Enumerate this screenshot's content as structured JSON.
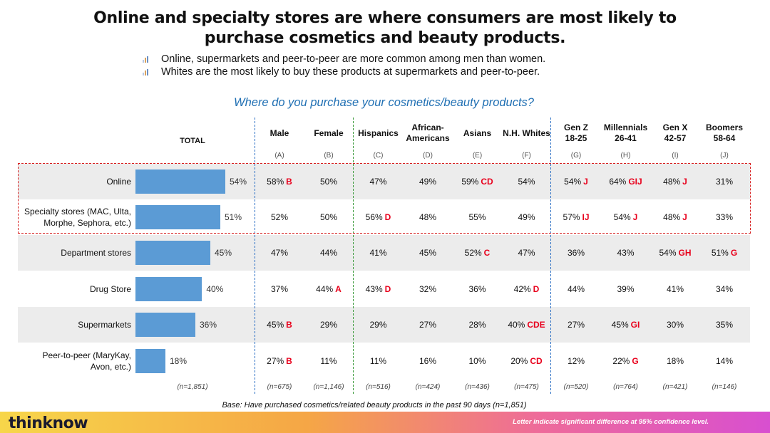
{
  "title_line1": "Online and specialty stores are where consumers are most likely to",
  "title_line2": "purchase cosmetics and beauty products.",
  "bullets": [
    "Online, supermarkets and peer-to-peer are more common among men than women.",
    "Whites are the most likely to buy these products at supermarkets and peer-to-peer."
  ],
  "question": "Where do you purchase your cosmetics/beauty products?",
  "total_header": "TOTAL",
  "columns": [
    {
      "line1": "Male",
      "line2": "",
      "letter": "(A)",
      "n": "(n=675)"
    },
    {
      "line1": "Female",
      "line2": "",
      "letter": "(B)",
      "n": "(n=1,146)"
    },
    {
      "line1": "Hispanics",
      "line2": "",
      "letter": "(C)",
      "n": "(n=516)"
    },
    {
      "line1": "African-",
      "line2": "Americans",
      "letter": "(D)",
      "n": "(n=424)"
    },
    {
      "line1": "Asians",
      "line2": "",
      "letter": "(E)",
      "n": "(n=436)"
    },
    {
      "line1": "N.H. Whites",
      "line2": "",
      "letter": "(F)",
      "n": "(n=475)"
    },
    {
      "line1": "Gen Z",
      "line2": "18-25",
      "letter": "(G)",
      "n": "(n=520)"
    },
    {
      "line1": "Millennials",
      "line2": "26-41",
      "letter": "(H)",
      "n": "(n=764)"
    },
    {
      "line1": "Gen X",
      "line2": "42-57",
      "letter": "(I)",
      "n": "(n=421)"
    },
    {
      "line1": "Boomers",
      "line2": "58-64",
      "letter": "(J)",
      "n": "(n=146)"
    }
  ],
  "total_n": "(n=1,851)",
  "rows": [
    {
      "line1": "Online",
      "line2": "",
      "total": "54%",
      "cells": [
        [
          "58%",
          "B"
        ],
        [
          "50%",
          ""
        ],
        [
          "47%",
          ""
        ],
        [
          "49%",
          ""
        ],
        [
          "59%",
          "CD"
        ],
        [
          "54%",
          ""
        ],
        [
          "54%",
          "J"
        ],
        [
          "64%",
          "GIJ"
        ],
        [
          "48%",
          "J"
        ],
        [
          "31%",
          ""
        ]
      ]
    },
    {
      "line1": "Specialty stores (MAC, Ulta,",
      "line2": "Morphe, Sephora, etc.)",
      "total": "51%",
      "cells": [
        [
          "52%",
          ""
        ],
        [
          "50%",
          ""
        ],
        [
          "56%",
          "D"
        ],
        [
          "48%",
          ""
        ],
        [
          "55%",
          ""
        ],
        [
          "49%",
          ""
        ],
        [
          "57%",
          "IJ"
        ],
        [
          "54%",
          "J"
        ],
        [
          "48%",
          "J"
        ],
        [
          "33%",
          ""
        ]
      ]
    },
    {
      "line1": "Department stores",
      "line2": "",
      "total": "45%",
      "cells": [
        [
          "47%",
          ""
        ],
        [
          "44%",
          ""
        ],
        [
          "41%",
          ""
        ],
        [
          "45%",
          ""
        ],
        [
          "52%",
          "C"
        ],
        [
          "47%",
          ""
        ],
        [
          "36%",
          ""
        ],
        [
          "43%",
          ""
        ],
        [
          "54%",
          "GH"
        ],
        [
          "51%",
          "G"
        ]
      ]
    },
    {
      "line1": "Drug Store",
      "line2": "",
      "total": "40%",
      "cells": [
        [
          "37%",
          ""
        ],
        [
          "44%",
          "A"
        ],
        [
          "43%",
          "D"
        ],
        [
          "32%",
          ""
        ],
        [
          "36%",
          ""
        ],
        [
          "42%",
          "D"
        ],
        [
          "44%",
          ""
        ],
        [
          "39%",
          ""
        ],
        [
          "41%",
          ""
        ],
        [
          "34%",
          ""
        ]
      ]
    },
    {
      "line1": "Supermarkets",
      "line2": "",
      "total": "36%",
      "cells": [
        [
          "45%",
          "B"
        ],
        [
          "29%",
          ""
        ],
        [
          "29%",
          ""
        ],
        [
          "27%",
          ""
        ],
        [
          "28%",
          ""
        ],
        [
          "40%",
          "CDE"
        ],
        [
          "27%",
          ""
        ],
        [
          "45%",
          "GI"
        ],
        [
          "30%",
          ""
        ],
        [
          "35%",
          ""
        ]
      ]
    },
    {
      "line1": "Peer-to-peer (MaryKay,",
      "line2": "Avon, etc.)",
      "total": "18%",
      "cells": [
        [
          "27%",
          "B"
        ],
        [
          "11%",
          ""
        ],
        [
          "11%",
          ""
        ],
        [
          "16%",
          ""
        ],
        [
          "10%",
          ""
        ],
        [
          "20%",
          "CD"
        ],
        [
          "12%",
          ""
        ],
        [
          "22%",
          "G"
        ],
        [
          "18%",
          ""
        ],
        [
          "14%",
          ""
        ]
      ]
    }
  ],
  "chart_data": {
    "type": "bar",
    "categories": [
      "Online",
      "Specialty stores (MAC, Ulta, Morphe, Sephora, etc.)",
      "Department stores",
      "Drug Store",
      "Supermarkets",
      "Peer-to-peer (MaryKay, Avon, etc.)"
    ],
    "values": [
      54,
      51,
      45,
      40,
      36,
      18
    ],
    "xlabel": "",
    "ylabel": "",
    "orientation": "horizontal",
    "bar_color": "#5b9bd5"
  },
  "base_note": "Base: Have purchased cosmetics/related beauty products in the past 90 days (n=1,851)",
  "brand": "thinknow",
  "footnote": "Letter indicate significant difference at 95% confidence level.",
  "colors": {
    "bar": "#5b9bd5",
    "significance": "#e8001c",
    "question": "#1f6fb3",
    "highlight": "#d62020",
    "divider_blue": "#2b6fc4",
    "divider_green": "#3a9a3a"
  }
}
